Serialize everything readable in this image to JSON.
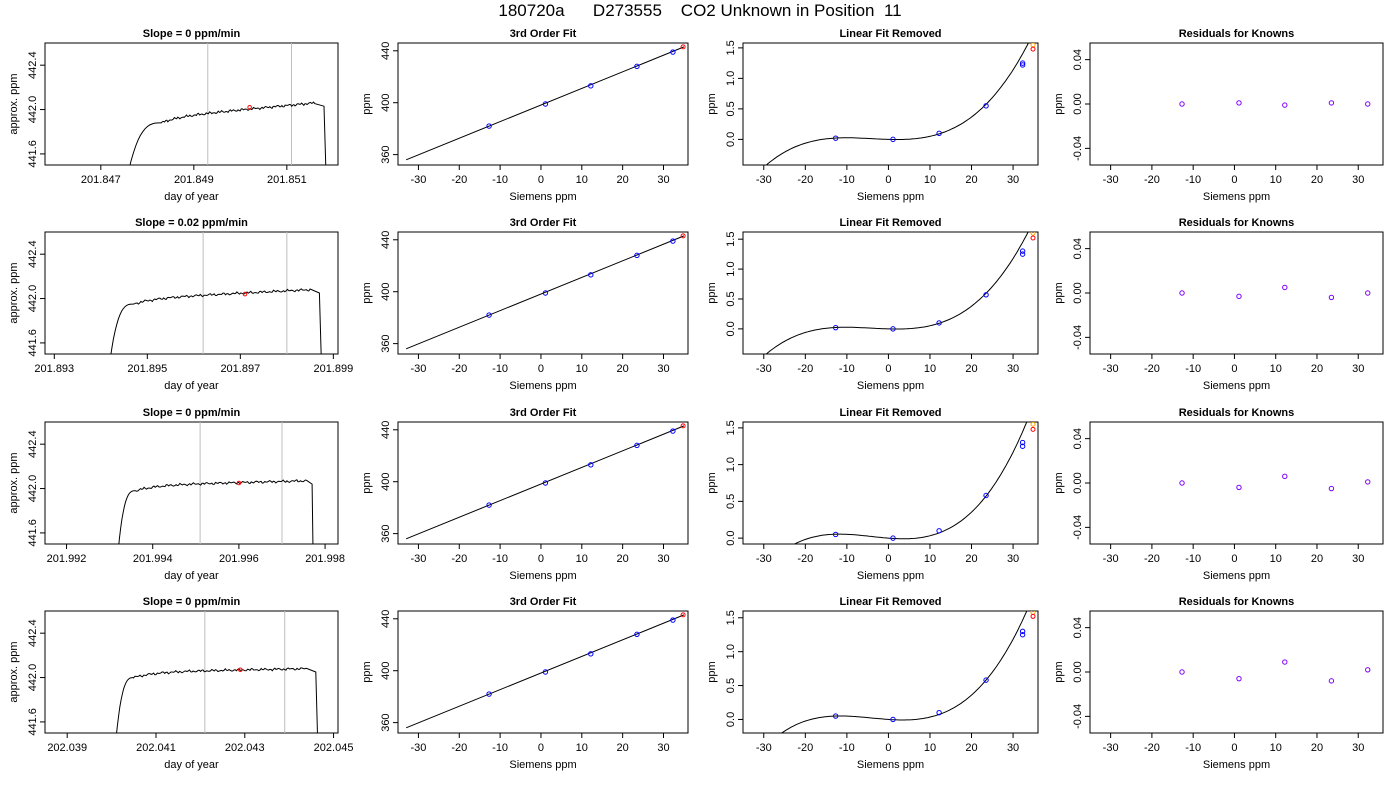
{
  "page_title": "180720a      D273555    CO2 Unknown in Position  11",
  "colors": {
    "trace": "#000000",
    "window_lines": "#bebebe",
    "unknown_point": "#ff0000",
    "known_point": "#0000ff",
    "known_point_alt": "#7f00ff",
    "cal_point_top": "#ffa500"
  },
  "chart_data": [
    {
      "type": "line",
      "row": 1,
      "col": 1,
      "title": "Slope =  0  ppm/min",
      "xlabel": "day of year",
      "ylabel": "approx. ppm",
      "xlim": [
        201.8458,
        201.8521
      ],
      "ylim": [
        441.5,
        442.6
      ],
      "xticks": [
        "201.847",
        "201.849",
        "201.851"
      ],
      "xtick_values": [
        201.847,
        201.849,
        201.851
      ],
      "yticks": [
        "441.6",
        "442.0",
        "442.4"
      ],
      "ytick_values": [
        441.6,
        442.0,
        442.4
      ],
      "trace": {
        "x_start": 201.8476,
        "rise_end": 201.8483,
        "flat_end": 201.8516,
        "x_end": 201.8518,
        "level_start": 441.93,
        "level_end": 442.06,
        "low": 441.45
      },
      "window": [
        201.8493,
        201.8511
      ],
      "marker": {
        "x": 201.8502,
        "y": 442.02
      }
    },
    {
      "type": "scatter",
      "row": 1,
      "col": 2,
      "title": "3rd Order Fit",
      "xlabel": "Siemens ppm",
      "ylabel": "ppm",
      "xlim": [
        -35,
        36
      ],
      "ylim": [
        352,
        446
      ],
      "xticks": [
        "-30",
        "-20",
        "-10",
        "0",
        "10",
        "20",
        "30"
      ],
      "xtick_values": [
        -30,
        -20,
        -10,
        0,
        10,
        20,
        30
      ],
      "yticks": [
        "360",
        "400",
        "440"
      ],
      "ytick_values": [
        360,
        400,
        440
      ],
      "fit_line": {
        "x": [
          -33,
          35
        ],
        "y": [
          356,
          443
        ]
      },
      "points_known": {
        "x": [
          -12.7,
          1.1,
          12.2,
          23.5,
          32.3
        ],
        "y": [
          382,
          399,
          413,
          428,
          439
        ]
      },
      "points_unknown": {
        "x": [
          34.8
        ],
        "y": [
          443
        ]
      }
    },
    {
      "type": "scatter",
      "row": 1,
      "col": 3,
      "title": "Linear Fit Removed",
      "xlabel": "Siemens ppm",
      "ylabel": "ppm",
      "xlim": [
        -35,
        36
      ],
      "ylim": [
        -0.42,
        1.58
      ],
      "xticks": [
        "-30",
        "-20",
        "-10",
        "0",
        "10",
        "20",
        "30"
      ],
      "xtick_values": [
        -30,
        -20,
        -10,
        0,
        10,
        20,
        30
      ],
      "yticks": [
        "0.0",
        "0.5",
        "1.0",
        "1.5"
      ],
      "ytick_values": [
        0,
        0.5,
        1.0,
        1.5
      ],
      "curve": {
        "x_range": [
          -33,
          35
        ],
        "coeffs": [
          -0.002,
          0.00038,
          3.18e-05
        ]
      },
      "points_known": {
        "x": [
          -12.7,
          1.1,
          12.2,
          23.5,
          32.3,
          32.3
        ],
        "y": [
          0.02,
          0.0,
          0.1,
          0.55,
          1.22,
          1.25
        ]
      },
      "points_unknown": {
        "x": [
          34.8
        ],
        "y": [
          1.48
        ]
      },
      "points_top": {
        "x": [
          34.8
        ],
        "y": [
          1.55
        ]
      }
    },
    {
      "type": "scatter",
      "row": 1,
      "col": 4,
      "title": "Residuals for Knowns",
      "xlabel": "Siemens ppm",
      "ylabel": "ppm",
      "xlim": [
        -35,
        36
      ],
      "ylim": [
        -0.055,
        0.055
      ],
      "xticks": [
        "-30",
        "-20",
        "-10",
        "0",
        "10",
        "20",
        "30"
      ],
      "xtick_values": [
        -30,
        -20,
        -10,
        0,
        10,
        20,
        30
      ],
      "yticks": [
        "-0.04",
        "0.00",
        "0.04"
      ],
      "ytick_values": [
        -0.04,
        0,
        0.04
      ],
      "points_known": {
        "x": [
          -12.7,
          1.1,
          12.2,
          23.5,
          32.3
        ],
        "y": [
          0.0,
          0.001,
          -0.001,
          0.001,
          0.0
        ]
      }
    },
    {
      "type": "line",
      "row": 2,
      "col": 1,
      "title": "Slope =  0.02  ppm/min",
      "xlabel": "day of year",
      "ylabel": "approx. ppm",
      "xlim": [
        201.8928,
        201.8991
      ],
      "ylim": [
        441.5,
        442.6
      ],
      "xticks": [
        "201.893",
        "201.895",
        "201.897",
        "201.899"
      ],
      "xtick_values": [
        201.893,
        201.895,
        201.897,
        201.899
      ],
      "yticks": [
        "441.6",
        "442.0",
        "442.4"
      ],
      "ytick_values": [
        441.6,
        442.0,
        442.4
      ],
      "trace": {
        "x_start": 201.8942,
        "rise_end": 201.8947,
        "flat_end": 201.8985,
        "x_end": 201.8987,
        "level_start": 442.0,
        "level_end": 442.08,
        "low": 441.45
      },
      "window": [
        201.8962,
        201.898
      ],
      "marker": {
        "x": 201.8971,
        "y": 442.04
      }
    },
    {
      "type": "scatter",
      "row": 2,
      "col": 2,
      "title": "3rd Order Fit",
      "xlabel": "Siemens ppm",
      "ylabel": "ppm",
      "xlim": [
        -35,
        36
      ],
      "ylim": [
        352,
        446
      ],
      "xticks": [
        "-30",
        "-20",
        "-10",
        "0",
        "10",
        "20",
        "30"
      ],
      "xtick_values": [
        -30,
        -20,
        -10,
        0,
        10,
        20,
        30
      ],
      "yticks": [
        "360",
        "400",
        "440"
      ],
      "ytick_values": [
        360,
        400,
        440
      ],
      "fit_line": {
        "x": [
          -33,
          35
        ],
        "y": [
          356,
          443
        ]
      },
      "points_known": {
        "x": [
          -12.7,
          1.1,
          12.2,
          23.5,
          32.3
        ],
        "y": [
          382,
          399,
          413,
          428,
          439
        ]
      },
      "points_unknown": {
        "x": [
          34.8
        ],
        "y": [
          443
        ]
      }
    },
    {
      "type": "scatter",
      "row": 2,
      "col": 3,
      "title": "Linear Fit Removed",
      "xlabel": "Siemens ppm",
      "ylabel": "ppm",
      "xlim": [
        -35,
        36
      ],
      "ylim": [
        -0.42,
        1.62
      ],
      "xticks": [
        "-30",
        "-20",
        "-10",
        "0",
        "10",
        "20",
        "30"
      ],
      "xtick_values": [
        -30,
        -20,
        -10,
        0,
        10,
        20,
        30
      ],
      "yticks": [
        "0.0",
        "0.5",
        "1.0",
        "1.5"
      ],
      "ytick_values": [
        0,
        0.5,
        1.0,
        1.5
      ],
      "curve": {
        "x_range": [
          -33,
          35
        ],
        "coeffs": [
          -0.002,
          0.0004,
          3.25e-05
        ]
      },
      "points_known": {
        "x": [
          -12.7,
          1.1,
          12.2,
          23.5,
          32.3,
          32.3
        ],
        "y": [
          0.02,
          0.0,
          0.1,
          0.57,
          1.25,
          1.3
        ]
      },
      "points_unknown": {
        "x": [
          34.8
        ],
        "y": [
          1.52
        ]
      },
      "points_top": {
        "x": [
          34.8
        ],
        "y": [
          1.6
        ]
      }
    },
    {
      "type": "scatter",
      "row": 2,
      "col": 4,
      "title": "Residuals for Knowns",
      "xlabel": "Siemens ppm",
      "ylabel": "ppm",
      "xlim": [
        -35,
        36
      ],
      "ylim": [
        -0.055,
        0.055
      ],
      "xticks": [
        "-30",
        "-20",
        "-10",
        "0",
        "10",
        "20",
        "30"
      ],
      "xtick_values": [
        -30,
        -20,
        -10,
        0,
        10,
        20,
        30
      ],
      "yticks": [
        "-0.04",
        "0.00",
        "0.04"
      ],
      "ytick_values": [
        -0.04,
        0,
        0.04
      ],
      "points_known": {
        "x": [
          -12.7,
          1.1,
          12.2,
          23.5,
          32.3
        ],
        "y": [
          0.0,
          -0.003,
          0.005,
          -0.004,
          0.0
        ]
      }
    },
    {
      "type": "line",
      "row": 3,
      "col": 1,
      "title": "Slope =  0  ppm/min",
      "xlabel": "day of year",
      "ylabel": "approx. ppm",
      "xlim": [
        201.9915,
        201.9983
      ],
      "ylim": [
        441.5,
        442.6
      ],
      "xticks": [
        "201.992",
        "201.994",
        "201.996",
        "201.998"
      ],
      "xtick_values": [
        201.992,
        201.994,
        201.996,
        201.998
      ],
      "yticks": [
        "441.6",
        "442.0",
        "442.4"
      ],
      "ytick_values": [
        441.6,
        442.0,
        442.4
      ],
      "trace": {
        "x_start": 201.9932,
        "rise_end": 201.9936,
        "flat_end": 201.9976,
        "x_end": 201.9977,
        "level_start": 442.03,
        "level_end": 442.07,
        "low": 441.45
      },
      "window": [
        201.9951,
        201.997
      ],
      "marker": {
        "x": 201.996,
        "y": 442.05
      }
    },
    {
      "type": "scatter",
      "row": 3,
      "col": 2,
      "title": "3rd Order Fit",
      "xlabel": "Siemens ppm",
      "ylabel": "ppm",
      "xlim": [
        -35,
        36
      ],
      "ylim": [
        352,
        446
      ],
      "xticks": [
        "-30",
        "-20",
        "-10",
        "0",
        "10",
        "20",
        "30"
      ],
      "xtick_values": [
        -30,
        -20,
        -10,
        0,
        10,
        20,
        30
      ],
      "yticks": [
        "360",
        "400",
        "440"
      ],
      "ytick_values": [
        360,
        400,
        440
      ],
      "fit_line": {
        "x": [
          -33,
          35
        ],
        "y": [
          356,
          443
        ]
      },
      "points_known": {
        "x": [
          -12.7,
          1.1,
          12.2,
          23.5,
          32.3
        ],
        "y": [
          382,
          399,
          413,
          428,
          439
        ]
      },
      "points_unknown": {
        "x": [
          34.8
        ],
        "y": [
          443
        ]
      }
    },
    {
      "type": "scatter",
      "row": 3,
      "col": 3,
      "title": "Linear Fit Removed",
      "xlabel": "Siemens ppm",
      "ylabel": "ppm",
      "xlim": [
        -35,
        36
      ],
      "ylim": [
        -0.08,
        1.58
      ],
      "xticks": [
        "-30",
        "-20",
        "-10",
        "0",
        "10",
        "20",
        "30"
      ],
      "xtick_values": [
        -30,
        -20,
        -10,
        0,
        10,
        20,
        30
      ],
      "yticks": [
        "0.0",
        "0.5",
        "1.0",
        "1.5"
      ],
      "ytick_values": [
        0,
        0.5,
        1.0,
        1.5
      ],
      "curve": {
        "x_range": [
          -33,
          35
        ],
        "coeffs": [
          -0.0044,
          0.00042,
          3.42e-05
        ]
      },
      "points_known": {
        "x": [
          -12.7,
          1.1,
          12.2,
          23.5,
          32.3,
          32.3
        ],
        "y": [
          0.05,
          0.0,
          0.1,
          0.58,
          1.25,
          1.3
        ]
      },
      "points_unknown": {
        "x": [
          34.8
        ],
        "y": [
          1.48
        ]
      },
      "points_top": {
        "x": [
          34.8
        ],
        "y": [
          1.55
        ]
      }
    },
    {
      "type": "scatter",
      "row": 3,
      "col": 4,
      "title": "Residuals for Knowns",
      "xlabel": "Siemens ppm",
      "ylabel": "ppm",
      "xlim": [
        -35,
        36
      ],
      "ylim": [
        -0.055,
        0.055
      ],
      "xticks": [
        "-30",
        "-20",
        "-10",
        "0",
        "10",
        "20",
        "30"
      ],
      "xtick_values": [
        -30,
        -20,
        -10,
        0,
        10,
        20,
        30
      ],
      "yticks": [
        "-0.04",
        "0.00",
        "0.04"
      ],
      "ytick_values": [
        -0.04,
        0,
        0.04
      ],
      "points_known": {
        "x": [
          -12.7,
          1.1,
          12.2,
          23.5,
          32.3
        ],
        "y": [
          0.0,
          -0.004,
          0.006,
          -0.005,
          0.001
        ]
      }
    },
    {
      "type": "line",
      "row": 4,
      "col": 1,
      "title": "Slope =  0  ppm/min",
      "xlabel": "day of year",
      "ylabel": "approx. ppm",
      "xlim": [
        202.0385,
        202.0451
      ],
      "ylim": [
        441.5,
        442.6
      ],
      "xticks": [
        "202.039",
        "202.041",
        "202.043",
        "202.045"
      ],
      "xtick_values": [
        202.039,
        202.041,
        202.043,
        202.045
      ],
      "yticks": [
        "441.6",
        "442.0",
        "442.4"
      ],
      "ytick_values": [
        441.6,
        442.0,
        442.4
      ],
      "trace": {
        "x_start": 202.0401,
        "rise_end": 202.0405,
        "flat_end": 202.0444,
        "x_end": 202.0446,
        "level_start": 442.05,
        "level_end": 442.08,
        "low": 441.45
      },
      "window": [
        202.0421,
        202.0439
      ],
      "marker": {
        "x": 202.0429,
        "y": 442.07
      }
    },
    {
      "type": "scatter",
      "row": 4,
      "col": 2,
      "title": "3rd Order Fit",
      "xlabel": "Siemens ppm",
      "ylabel": "ppm",
      "xlim": [
        -35,
        36
      ],
      "ylim": [
        352,
        446
      ],
      "xticks": [
        "-30",
        "-20",
        "-10",
        "0",
        "10",
        "20",
        "30"
      ],
      "xtick_values": [
        -30,
        -20,
        -10,
        0,
        10,
        20,
        30
      ],
      "yticks": [
        "360",
        "400",
        "440"
      ],
      "ytick_values": [
        360,
        400,
        440
      ],
      "fit_line": {
        "x": [
          -33,
          35
        ],
        "y": [
          356,
          443
        ]
      },
      "points_known": {
        "x": [
          -12.7,
          1.1,
          12.2,
          23.5,
          32.3
        ],
        "y": [
          382,
          399,
          413,
          428,
          439
        ]
      },
      "points_unknown": {
        "x": [
          34.8
        ],
        "y": [
          443
        ]
      }
    },
    {
      "type": "scatter",
      "row": 4,
      "col": 3,
      "title": "Linear Fit Removed",
      "xlabel": "Siemens ppm",
      "ylabel": "ppm",
      "xlim": [
        -35,
        36
      ],
      "ylim": [
        -0.2,
        1.6
      ],
      "xticks": [
        "-30",
        "-20",
        "-10",
        "0",
        "10",
        "20",
        "30"
      ],
      "xtick_values": [
        -30,
        -20,
        -10,
        0,
        10,
        20,
        30
      ],
      "yticks": [
        "0.0",
        "0.5",
        "1.0",
        "1.5"
      ],
      "ytick_values": [
        0,
        0.5,
        1.0,
        1.5
      ],
      "curve": {
        "x_range": [
          -33,
          35
        ],
        "coeffs": [
          -0.0042,
          0.00042,
          3.45e-05
        ]
      },
      "points_known": {
        "x": [
          -12.7,
          1.1,
          12.2,
          23.5,
          32.3,
          32.3
        ],
        "y": [
          0.05,
          0.0,
          0.1,
          0.58,
          1.25,
          1.3
        ]
      },
      "points_unknown": {
        "x": [
          34.8
        ],
        "y": [
          1.52
        ]
      },
      "points_top": {
        "x": [
          34.8
        ],
        "y": [
          1.58
        ]
      }
    },
    {
      "type": "scatter",
      "row": 4,
      "col": 4,
      "title": "Residuals for Knowns",
      "xlabel": "Siemens ppm",
      "ylabel": "ppm",
      "xlim": [
        -35,
        36
      ],
      "ylim": [
        -0.055,
        0.055
      ],
      "xticks": [
        "-30",
        "-20",
        "-10",
        "0",
        "10",
        "20",
        "30"
      ],
      "xtick_values": [
        -30,
        -20,
        -10,
        0,
        10,
        20,
        30
      ],
      "yticks": [
        "-0.04",
        "0.00",
        "0.04"
      ],
      "ytick_values": [
        -0.04,
        0,
        0.04
      ],
      "points_known": {
        "x": [
          -12.7,
          1.1,
          12.2,
          23.5,
          32.3
        ],
        "y": [
          0.0,
          -0.006,
          0.009,
          -0.008,
          0.002
        ]
      }
    }
  ]
}
